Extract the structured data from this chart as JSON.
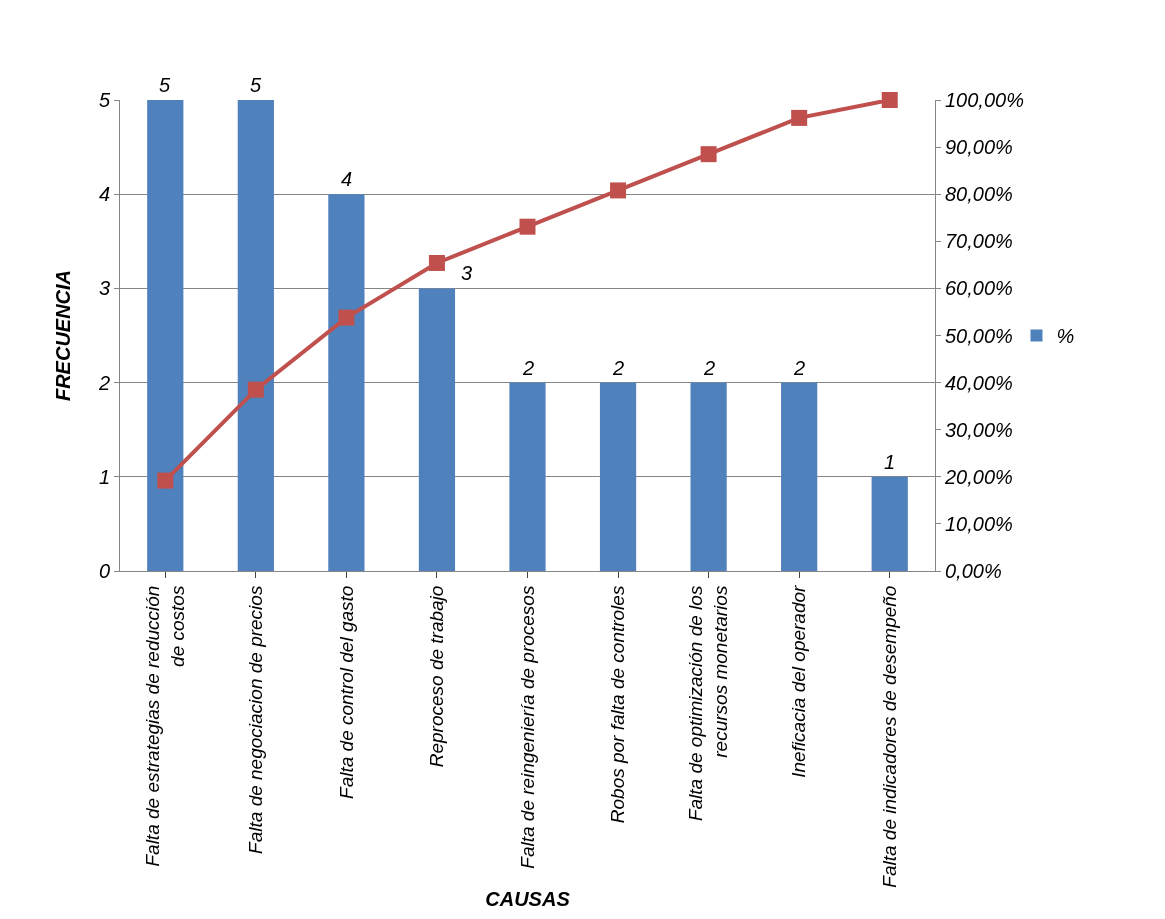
{
  "chart_data": {
    "type": "bar",
    "xlabel": "CAUSAS",
    "ylabel": "FRECUENCIA",
    "categories": [
      "Falta de estrategias de reducción de costos",
      "Falta de negociacion de precios",
      "Falta de control del gasto",
      "Reproceso de trabajo",
      "Falta de reingeniería de procesos",
      "Robos por falta de controles",
      "Falta de optimización de los recursos monetarios",
      "Ineficacia del operador",
      "Falta de indicadores de desempeño"
    ],
    "series": [
      {
        "name": "%",
        "color": "#4f81bd",
        "values": [
          5,
          5,
          4,
          3,
          2,
          2,
          2,
          2,
          1
        ],
        "value_labels": [
          "5",
          "5",
          "4",
          "3",
          "2",
          "2",
          "2",
          "2",
          "1"
        ]
      },
      {
        "type": "line",
        "axis": "y2",
        "color": "#c0504d",
        "marker": "square",
        "values": [
          19.2,
          38.5,
          53.8,
          65.4,
          73.1,
          80.8,
          88.5,
          96.2,
          100
        ]
      }
    ],
    "ylim": [
      0,
      5
    ],
    "yticks": [
      0,
      1,
      2,
      3,
      4,
      5
    ],
    "y2lim": [
      0,
      100
    ],
    "y2ticks": [
      {
        "value": 0,
        "label": "0,00%"
      },
      {
        "value": 10,
        "label": "10,00%"
      },
      {
        "value": 20,
        "label": "20,00%"
      },
      {
        "value": 30,
        "label": "30,00%"
      },
      {
        "value": 40,
        "label": "40,00%"
      },
      {
        "value": 50,
        "label": "50,00%"
      },
      {
        "value": 60,
        "label": "60,00%"
      },
      {
        "value": 70,
        "label": "70,00%"
      },
      {
        "value": 80,
        "label": "80,00%"
      },
      {
        "value": 90,
        "label": "90,00%"
      },
      {
        "value": 100,
        "label": "100,00%"
      }
    ],
    "grid": "y",
    "legend": "right"
  }
}
